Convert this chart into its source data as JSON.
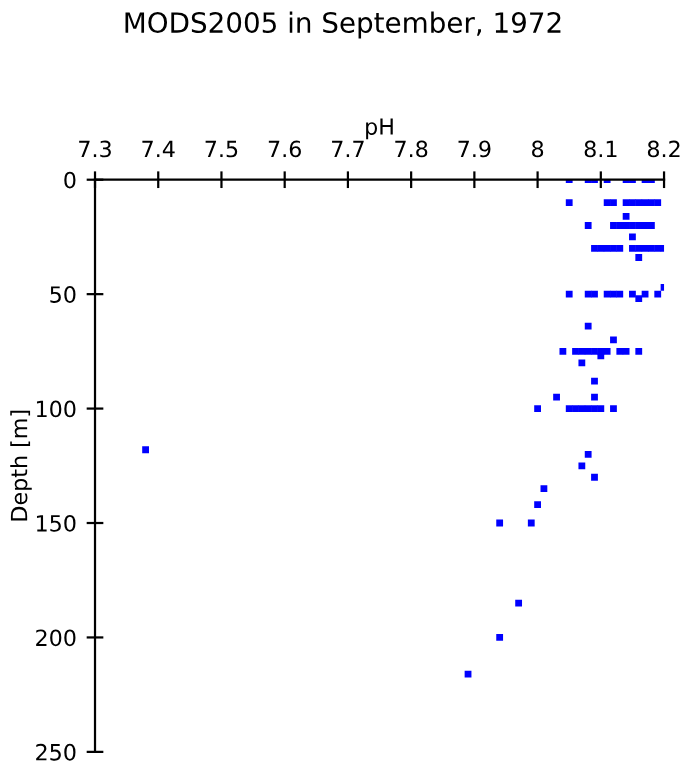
{
  "chart_data": {
    "type": "scatter",
    "title": "MODS2005 in September, 1972",
    "xlabel": "pH",
    "ylabel": "Depth [m]",
    "xlim": [
      7.3,
      8.2
    ],
    "xticks": [
      7.3,
      7.4,
      7.5,
      7.6,
      7.7,
      7.8,
      7.9,
      8,
      8.1,
      8.2
    ],
    "ylim": [
      250,
      0
    ],
    "yticks": [
      0,
      50,
      100,
      150,
      200,
      250
    ],
    "grid": false,
    "marker": "square",
    "series": [
      {
        "color": "#0000ff",
        "x": [
          8.05,
          8.08,
          8.09,
          8.11,
          8.14,
          8.15,
          8.17,
          8.18,
          8.05,
          8.11,
          8.12,
          8.14,
          8.15,
          8.16,
          8.17,
          8.18,
          8.19,
          8.14,
          8.08,
          8.12,
          8.13,
          8.14,
          8.15,
          8.16,
          8.17,
          8.18,
          8.15,
          8.09,
          8.1,
          8.11,
          8.12,
          8.13,
          8.15,
          8.16,
          8.17,
          8.18,
          8.19,
          8.2,
          8.16,
          8.2,
          8.05,
          8.08,
          8.09,
          8.11,
          8.12,
          8.13,
          8.15,
          8.17,
          8.19,
          8.16,
          8.08,
          8.12,
          8.04,
          8.06,
          8.07,
          8.08,
          8.09,
          8.1,
          8.11,
          8.13,
          8.14,
          8.16,
          8.1,
          8.07,
          8.09,
          8.03,
          8.09,
          8.0,
          8.05,
          8.06,
          8.07,
          8.08,
          8.09,
          8.1,
          8.12,
          7.38,
          8.08,
          8.07,
          8.09,
          8.01,
          8.0,
          7.94,
          7.99,
          7.97,
          7.94,
          7.89
        ],
        "values": [
          0,
          0,
          0,
          0,
          0,
          0,
          0,
          0,
          10,
          10,
          10,
          10,
          10,
          10,
          10,
          10,
          10,
          16,
          20,
          20,
          20,
          20,
          20,
          20,
          20,
          20,
          25,
          30,
          30,
          30,
          30,
          30,
          30,
          30,
          30,
          30,
          30,
          30,
          34,
          47,
          50,
          50,
          50,
          50,
          50,
          50,
          50,
          50,
          50,
          52,
          64,
          70,
          75,
          75,
          75,
          75,
          75,
          75,
          75,
          75,
          75,
          75,
          77,
          80,
          88,
          95,
          95,
          100,
          100,
          100,
          100,
          100,
          100,
          100,
          100,
          118,
          120,
          125,
          130,
          135,
          142,
          150,
          150,
          185,
          200,
          216
        ]
      }
    ]
  }
}
